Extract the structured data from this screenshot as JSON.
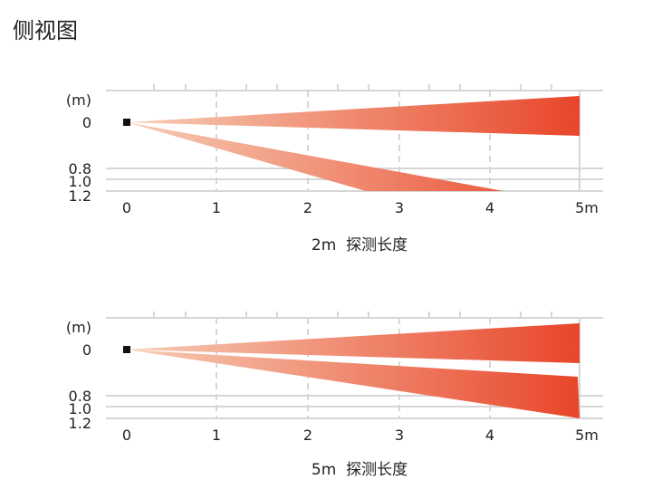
{
  "page_title": "侧视图",
  "colors": {
    "beam_start": "#f6c3a9",
    "beam_end": "#e8462a",
    "grid": "#d6d6d6",
    "line": "#cccccc"
  },
  "diagrams": [
    {
      "y_unit": "(m)",
      "y_labels": [
        "0",
        "0.8",
        "1.0",
        "1.2"
      ],
      "x_labels": [
        "0",
        "1",
        "2",
        "3",
        "4",
        "5m"
      ],
      "caption": "2m  探测长度"
    },
    {
      "y_unit": "(m)",
      "y_labels": [
        "0",
        "0.8",
        "1.0",
        "1.2"
      ],
      "x_labels": [
        "0",
        "1",
        "2",
        "3",
        "4",
        "5m"
      ],
      "caption": "5m  探测长度"
    }
  ]
}
